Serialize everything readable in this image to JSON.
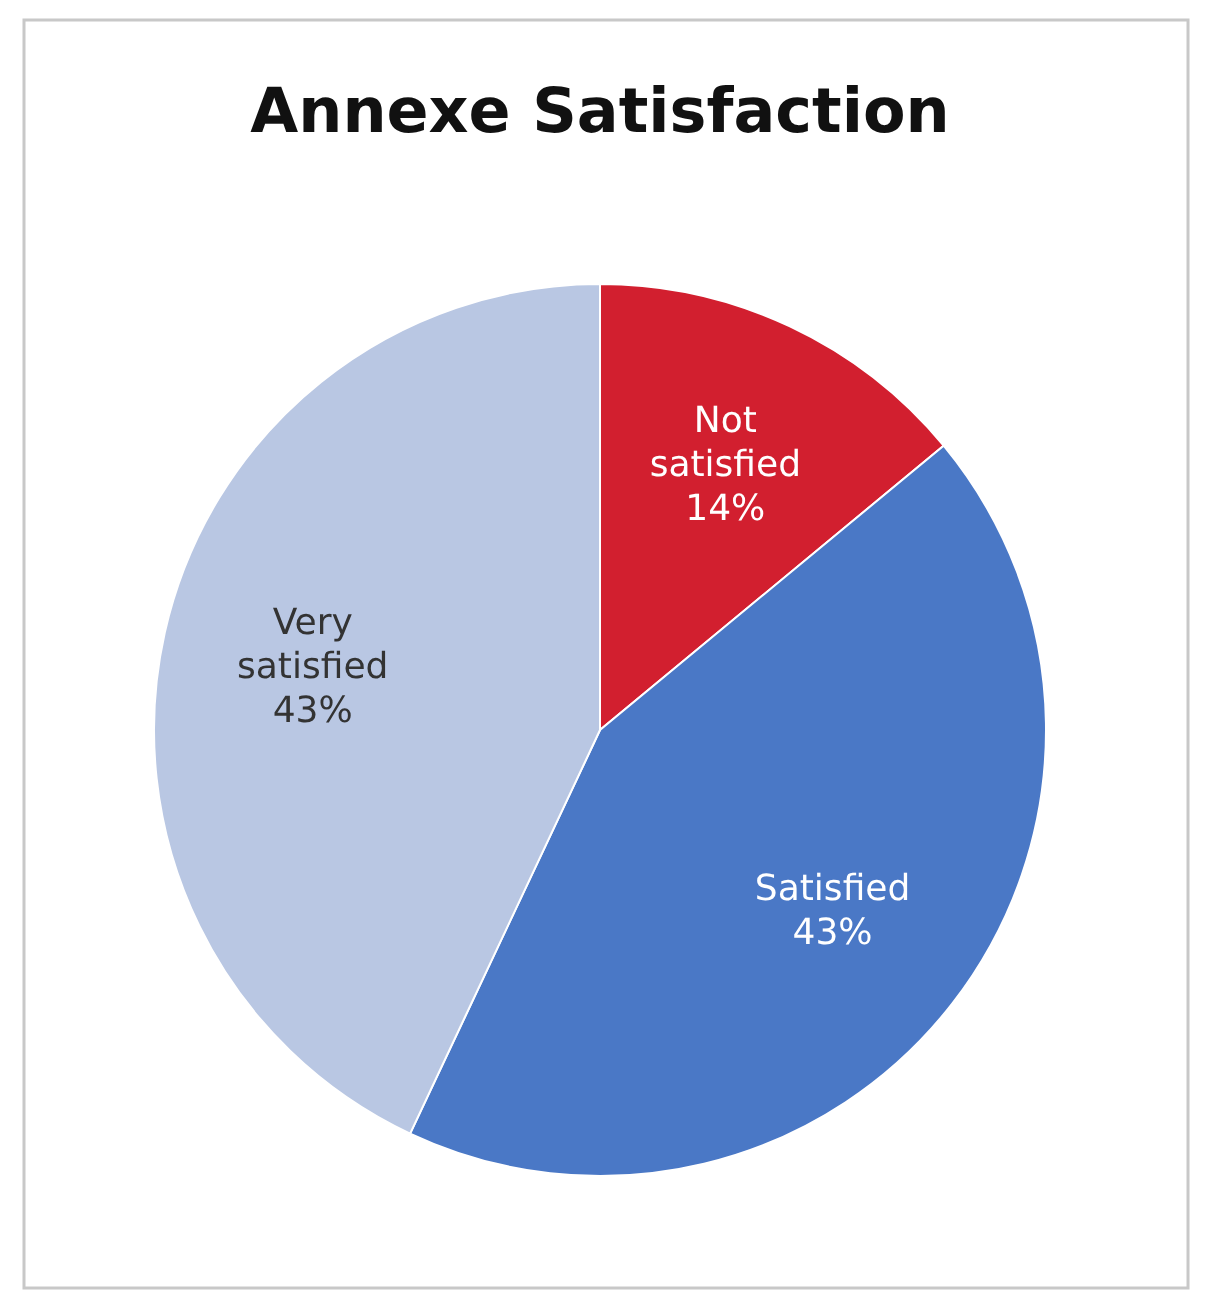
{
  "chart_data": {
    "type": "pie",
    "title": "Annexe Satisfaction",
    "categories": [
      "Not satisfied",
      "Satisfied",
      "Very satisfied"
    ],
    "values": [
      14,
      43,
      43
    ],
    "colors": [
      "#d21f2f",
      "#4a78c6",
      "#b9c7e3"
    ],
    "value_labels": [
      "14%",
      "43%",
      "43%"
    ],
    "legend": false
  }
}
